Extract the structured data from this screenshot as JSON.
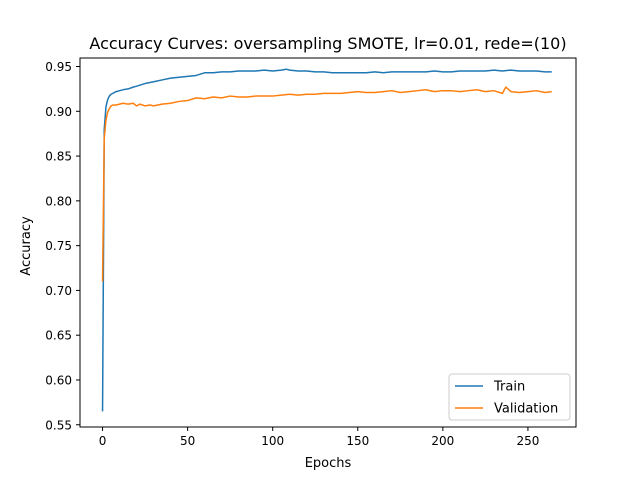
{
  "chart_data": {
    "type": "line",
    "title": "Accuracy Curves: oversampling SMOTE, lr=0.01, rede=(10)",
    "xlabel": "Epochs",
    "ylabel": "Accuracy",
    "xlim": [
      -13.25,
      278.25
    ],
    "ylim": [
      0.5475,
      0.9595
    ],
    "xticks": [
      0,
      50,
      100,
      150,
      200,
      250
    ],
    "xtick_labels": [
      "0",
      "50",
      "100",
      "150",
      "200",
      "250"
    ],
    "yticks": [
      0.55,
      0.6,
      0.65,
      0.7,
      0.75,
      0.8,
      0.85,
      0.9,
      0.95
    ],
    "ytick_labels": [
      "0.55",
      "0.60",
      "0.65",
      "0.70",
      "0.75",
      "0.80",
      "0.85",
      "0.90",
      "0.95"
    ],
    "grid": false,
    "legend_position": "lower-right",
    "series": [
      {
        "name": "Train",
        "color": "#1f77b4",
        "x": [
          0,
          1,
          2,
          3,
          4,
          5,
          6,
          8,
          10,
          12,
          15,
          18,
          20,
          25,
          30,
          35,
          40,
          45,
          50,
          55,
          60,
          65,
          70,
          75,
          80,
          85,
          90,
          95,
          100,
          105,
          108,
          110,
          115,
          120,
          125,
          130,
          135,
          140,
          145,
          150,
          155,
          160,
          165,
          170,
          175,
          180,
          185,
          190,
          195,
          200,
          205,
          210,
          215,
          220,
          225,
          230,
          235,
          240,
          245,
          250,
          255,
          260,
          264
        ],
        "y": [
          0.565,
          0.88,
          0.905,
          0.913,
          0.917,
          0.919,
          0.92,
          0.922,
          0.923,
          0.924,
          0.925,
          0.927,
          0.928,
          0.931,
          0.933,
          0.935,
          0.937,
          0.938,
          0.939,
          0.94,
          0.943,
          0.943,
          0.944,
          0.944,
          0.945,
          0.945,
          0.945,
          0.946,
          0.945,
          0.946,
          0.947,
          0.946,
          0.945,
          0.945,
          0.944,
          0.944,
          0.943,
          0.943,
          0.943,
          0.943,
          0.943,
          0.944,
          0.943,
          0.944,
          0.944,
          0.944,
          0.944,
          0.944,
          0.945,
          0.944,
          0.944,
          0.945,
          0.945,
          0.945,
          0.945,
          0.946,
          0.945,
          0.946,
          0.945,
          0.945,
          0.945,
          0.944,
          0.944
        ]
      },
      {
        "name": "Validation",
        "color": "#ff7f0e",
        "x": [
          0,
          1,
          2,
          3,
          4,
          5,
          6,
          8,
          10,
          12,
          15,
          18,
          20,
          22,
          25,
          28,
          30,
          35,
          40,
          45,
          50,
          55,
          60,
          65,
          70,
          75,
          80,
          85,
          90,
          95,
          100,
          105,
          110,
          115,
          120,
          125,
          130,
          135,
          140,
          145,
          150,
          155,
          160,
          165,
          170,
          175,
          180,
          185,
          190,
          195,
          200,
          205,
          210,
          215,
          220,
          225,
          230,
          235,
          237,
          240,
          245,
          250,
          255,
          260,
          264
        ],
        "y": [
          0.71,
          0.87,
          0.89,
          0.899,
          0.903,
          0.906,
          0.907,
          0.907,
          0.908,
          0.909,
          0.908,
          0.909,
          0.906,
          0.908,
          0.906,
          0.907,
          0.906,
          0.908,
          0.909,
          0.911,
          0.912,
          0.915,
          0.914,
          0.916,
          0.915,
          0.917,
          0.916,
          0.916,
          0.917,
          0.917,
          0.917,
          0.918,
          0.919,
          0.918,
          0.919,
          0.919,
          0.92,
          0.92,
          0.92,
          0.921,
          0.922,
          0.921,
          0.921,
          0.922,
          0.923,
          0.921,
          0.922,
          0.923,
          0.924,
          0.922,
          0.923,
          0.923,
          0.922,
          0.923,
          0.924,
          0.922,
          0.923,
          0.92,
          0.927,
          0.922,
          0.921,
          0.922,
          0.923,
          0.921,
          0.922
        ]
      }
    ]
  }
}
